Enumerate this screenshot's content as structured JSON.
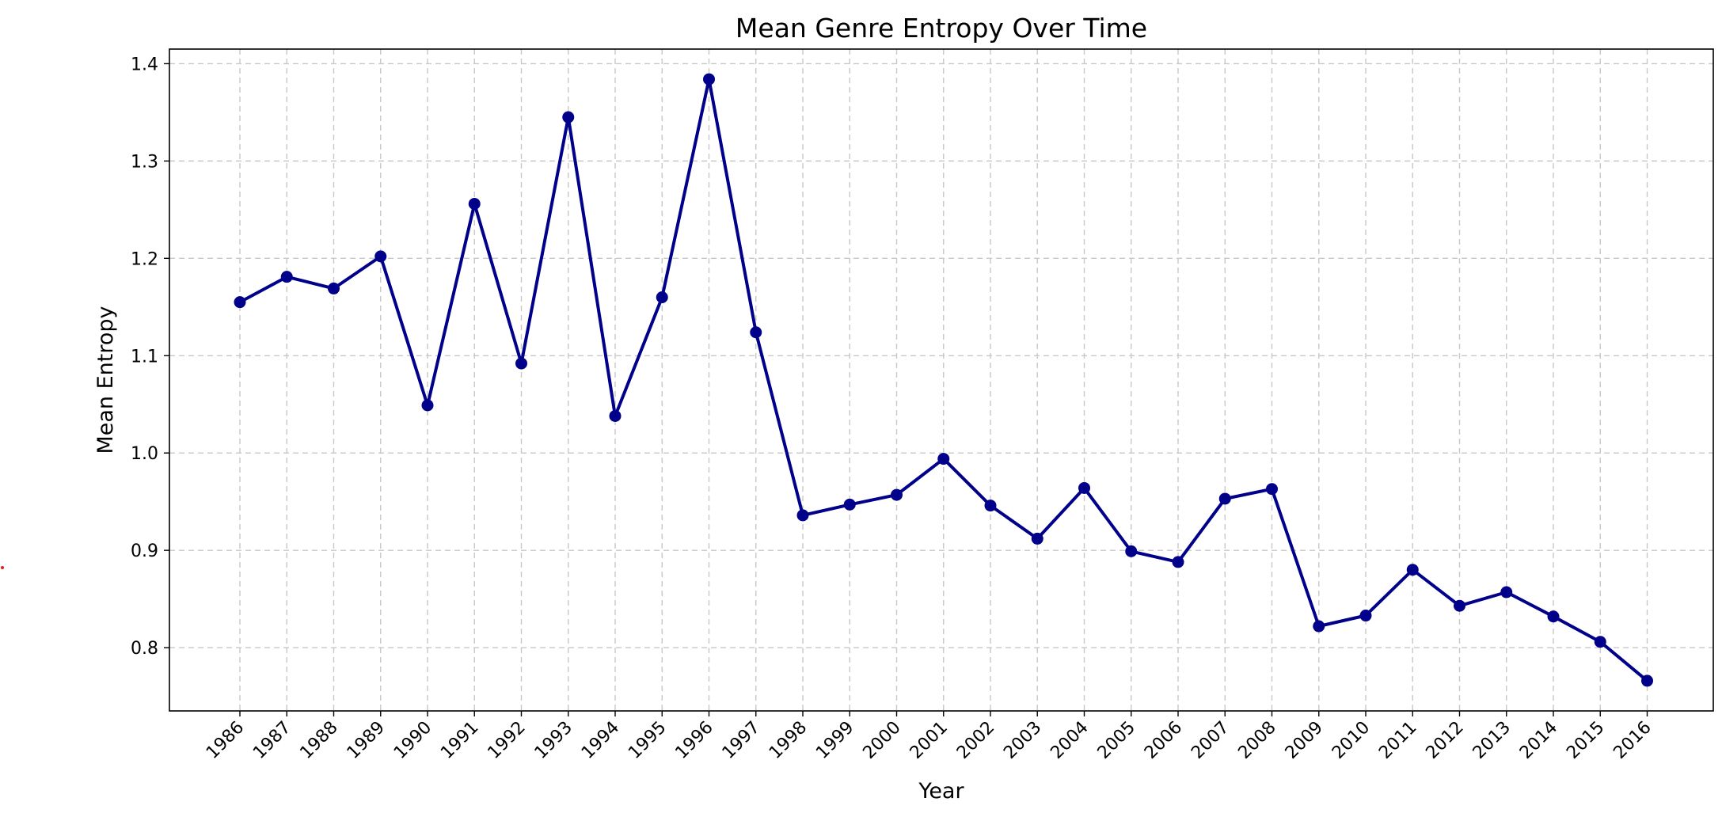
{
  "chart_data": {
    "type": "line",
    "title": "Mean Genre Entropy Over Time",
    "xlabel": "Year",
    "ylabel": "Mean Entropy",
    "ylim": [
      0.735,
      1.415
    ],
    "yticks": [
      "0.8",
      "0.9",
      "1.0",
      "1.1",
      "1.2",
      "1.3",
      "1.4"
    ],
    "ytick_values": [
      0.8,
      0.9,
      1.0,
      1.1,
      1.2,
      1.3,
      1.4
    ],
    "grid": true,
    "line_color": "#00008B",
    "marker": "circle",
    "categories": [
      "1986",
      "1987",
      "1988",
      "1989",
      "1990",
      "1991",
      "1992",
      "1993",
      "1994",
      "1995",
      "1996",
      "1997",
      "1998",
      "1999",
      "2000",
      "2001",
      "2002",
      "2003",
      "2004",
      "2005",
      "2006",
      "2007",
      "2008",
      "2009",
      "2010",
      "2011",
      "2012",
      "2013",
      "2014",
      "2015",
      "2016"
    ],
    "values": [
      1.155,
      1.181,
      1.169,
      1.202,
      1.049,
      1.256,
      1.092,
      1.345,
      1.038,
      1.16,
      1.384,
      1.124,
      0.936,
      0.947,
      0.957,
      0.994,
      0.946,
      0.912,
      0.964,
      0.899,
      0.888,
      0.953,
      0.963,
      0.822,
      0.833,
      0.88,
      0.843,
      0.857,
      0.832,
      0.806,
      0.766
    ]
  }
}
